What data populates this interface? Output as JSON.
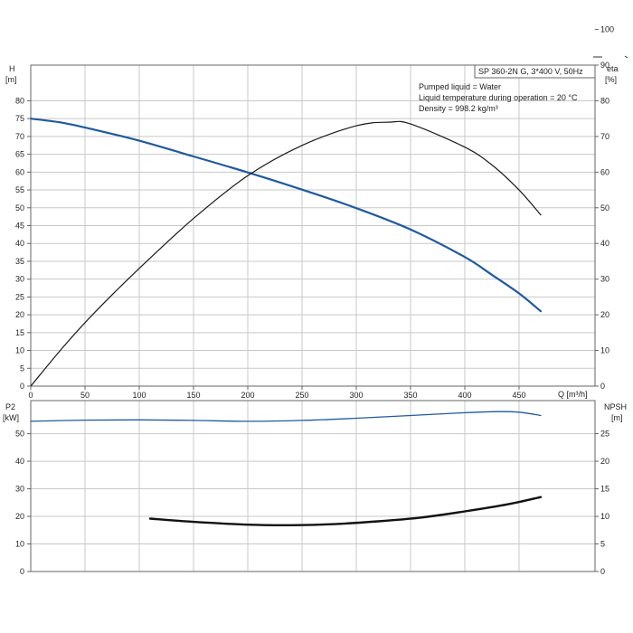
{
  "chart_data": [
    {
      "type": "line",
      "name": "pump-curve",
      "info": {
        "model": "SP 360-2N G, 3*400 V, 50Hz",
        "liquid": "Pumped liquid = Water",
        "temperature": "Liquid temperature during operation = 20 °C",
        "density": "Density = 998.2 kg/m³"
      },
      "x_axis": {
        "label": "Q [m³/h]",
        "range": [
          0,
          520
        ],
        "ticks": [
          0,
          50,
          100,
          150,
          200,
          250,
          300,
          350,
          400,
          450
        ]
      },
      "y_left": {
        "label_top": "H",
        "label_unit": "[m]",
        "range": [
          0,
          90
        ],
        "ticks": [
          0,
          5,
          10,
          15,
          20,
          25,
          30,
          35,
          40,
          45,
          50,
          55,
          60,
          65,
          70,
          75,
          80
        ]
      },
      "y_right": {
        "label_top": "eta",
        "label_unit": "[%]",
        "range": [
          0,
          90
        ],
        "ticks": [
          0,
          10,
          20,
          30,
          40,
          50,
          60,
          70,
          80,
          90,
          100
        ]
      },
      "grid": true,
      "series": [
        {
          "axis": "left",
          "color": "#1f5aa0",
          "x": [
            0,
            30,
            60,
            100,
            150,
            200,
            250,
            300,
            350,
            400,
            425,
            450,
            470
          ],
          "y": [
            75,
            73.8,
            71.8,
            68.8,
            64.4,
            59.9,
            55.1,
            49.9,
            43.9,
            36.2,
            31.2,
            26,
            21
          ]
        },
        {
          "axis": "right",
          "color": "#1a1a1a",
          "x": [
            0,
            30,
            60,
            100,
            150,
            200,
            250,
            300,
            330,
            350,
            400,
            425,
            450,
            470
          ],
          "y": [
            0,
            11,
            21,
            33,
            47,
            59,
            67.5,
            73,
            74,
            73.5,
            67,
            62,
            55,
            48
          ]
        }
      ]
    },
    {
      "type": "line",
      "name": "power-npsh",
      "x_axis": {
        "range": [
          0,
          520
        ]
      },
      "y_left": {
        "label_top": "P2",
        "label_unit": "[kW]",
        "range": [
          0,
          62
        ],
        "ticks": [
          0,
          10,
          20,
          30,
          40,
          50
        ]
      },
      "y_right": {
        "label_top": "NPSH",
        "label_unit": "[m]",
        "range": [
          0,
          31
        ],
        "ticks": [
          0,
          5,
          10,
          15,
          20,
          25
        ]
      },
      "grid": true,
      "series": [
        {
          "axis": "left",
          "color": "#1f5aa0",
          "x": [
            0,
            50,
            100,
            150,
            200,
            250,
            300,
            350,
            400,
            430,
            450,
            470
          ],
          "y": [
            54.5,
            54.9,
            55,
            54.8,
            54.5,
            54.8,
            55.6,
            56.6,
            57.6,
            58,
            57.8,
            56.6
          ]
        },
        {
          "axis": "right",
          "color": "#111111",
          "x": [
            110,
            150,
            200,
            240,
            280,
            320,
            360,
            400,
            440,
            470
          ],
          "y": [
            9.6,
            9.0,
            8.5,
            8.4,
            8.6,
            9.1,
            9.8,
            10.9,
            12.2,
            13.5
          ]
        }
      ]
    }
  ]
}
